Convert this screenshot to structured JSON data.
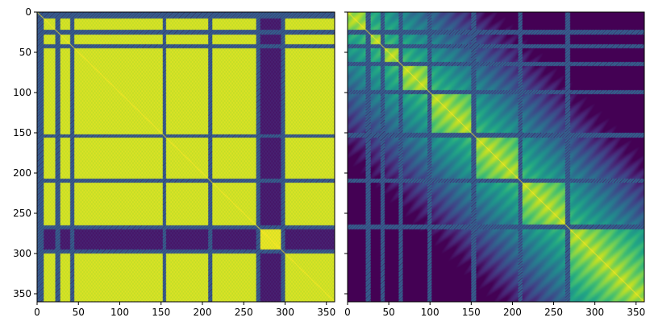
{
  "chart_data": [
    {
      "type": "heatmap",
      "title": "",
      "xlabel": "",
      "ylabel": "",
      "xlim": [
        0,
        360
      ],
      "ylim": [
        360,
        0
      ],
      "shape": [
        360,
        360
      ],
      "colormap": "viridis",
      "value_range": [
        0,
        1
      ],
      "x_ticks": [
        0,
        50,
        100,
        150,
        200,
        250,
        300,
        350
      ],
      "x_tick_labels": [
        "0",
        "50",
        "100",
        "150",
        "200",
        "250",
        "300",
        "350"
      ],
      "y_ticks": [
        0,
        50,
        100,
        150,
        200,
        250,
        300,
        350
      ],
      "y_tick_labels": [
        "0",
        "50",
        "100",
        "150",
        "200",
        "250",
        "300",
        "350"
      ],
      "block_boundaries": [
        0,
        25,
        43,
        100,
        153,
        210,
        265,
        300,
        360
      ],
      "dark_bands": [
        [
          0,
          8
        ],
        [
          22,
          28
        ],
        [
          40,
          45
        ],
        [
          152,
          156
        ],
        [
          207,
          212
        ],
        [
          265,
          270
        ],
        [
          295,
          300
        ]
      ],
      "dark_region": [
        265,
        300
      ],
      "block_level": 0.93,
      "diagonal": "bright"
    },
    {
      "type": "heatmap",
      "title": "",
      "xlabel": "",
      "ylabel": "",
      "xlim": [
        0,
        360
      ],
      "ylim": [
        360,
        0
      ],
      "shape": [
        360,
        360
      ],
      "colormap": "viridis",
      "value_range": [
        0,
        1
      ],
      "x_ticks": [
        0,
        50,
        100,
        150,
        200,
        250,
        300,
        350
      ],
      "x_tick_labels": [
        "0",
        "50",
        "100",
        "150",
        "200",
        "250",
        "300",
        "350"
      ],
      "y_ticks": [
        0,
        50,
        100,
        150,
        200,
        250,
        300,
        350
      ],
      "y_tick_labels": [
        "",
        "",
        "",
        "",
        "",
        "",
        "",
        ""
      ],
      "block_boundaries": [
        0,
        25,
        43,
        65,
        100,
        153,
        210,
        265,
        360
      ],
      "dark_bands": [
        [
          22,
          28
        ],
        [
          40,
          45
        ],
        [
          62,
          67
        ],
        [
          97,
          102
        ],
        [
          150,
          156
        ],
        [
          207,
          212
        ],
        [
          264,
          270
        ]
      ],
      "block_level": 0.7,
      "decay": 0.004,
      "diagonal": "bright"
    }
  ]
}
